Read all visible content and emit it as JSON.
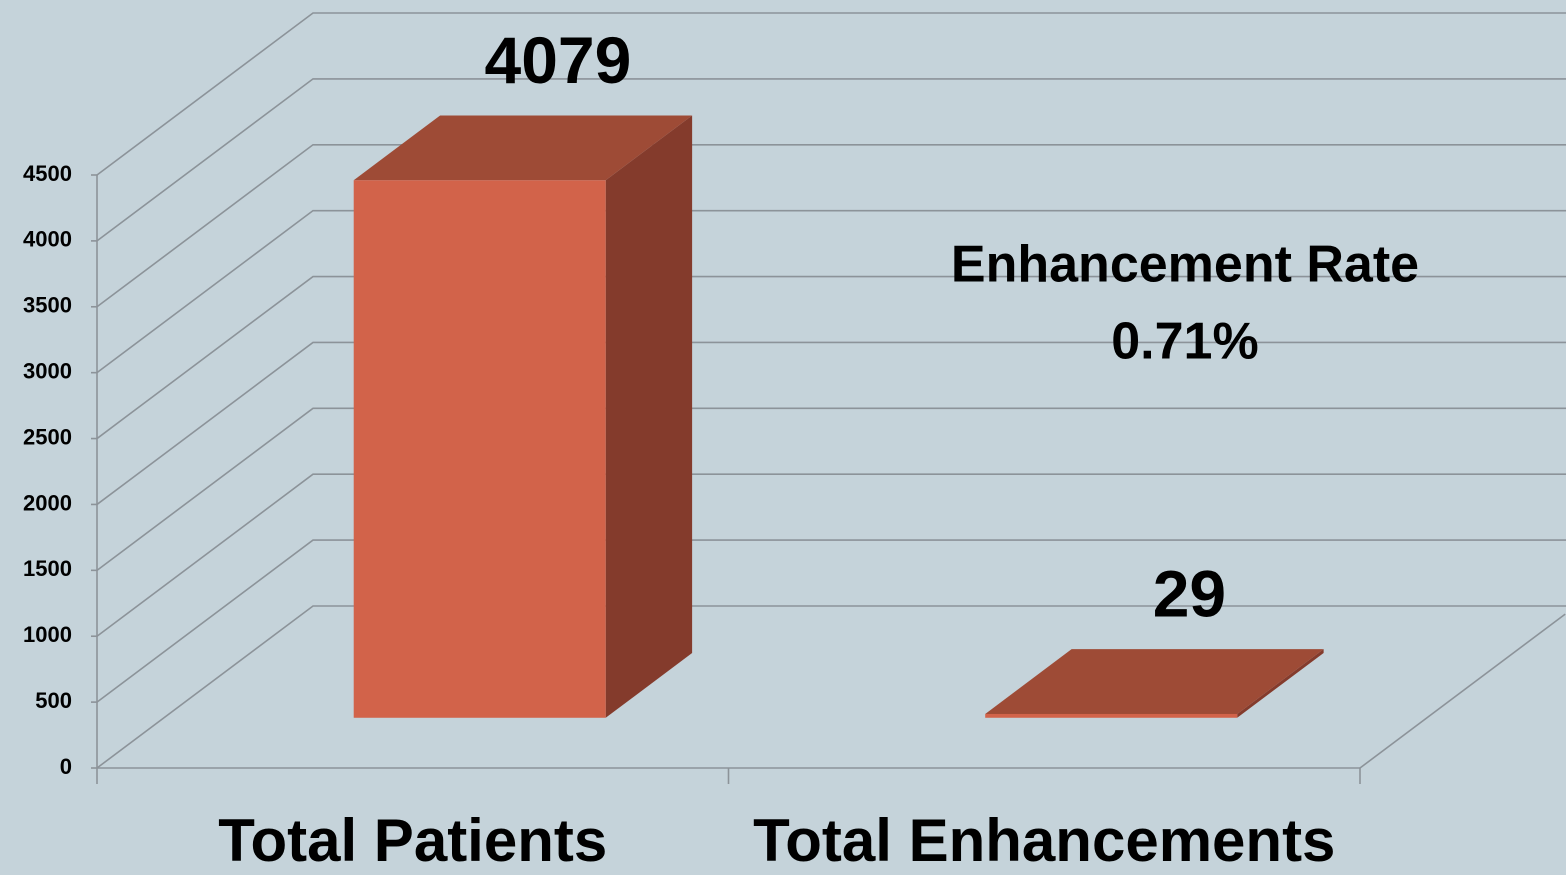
{
  "chart_data": {
    "type": "bar3d",
    "categories": [
      "Total Patients",
      "Total Enhancements"
    ],
    "values": [
      4079,
      29
    ],
    "colors": {
      "front": "#d2634a",
      "top": "#9e4b36",
      "side": "#843b2c"
    },
    "ylim": [
      0,
      4500
    ],
    "yticks": [
      0,
      500,
      1000,
      1500,
      2000,
      2500,
      3000,
      3500,
      4000,
      4500
    ],
    "grid": true,
    "annotations": [
      "Enhancement Rate",
      "0.71%"
    ]
  }
}
